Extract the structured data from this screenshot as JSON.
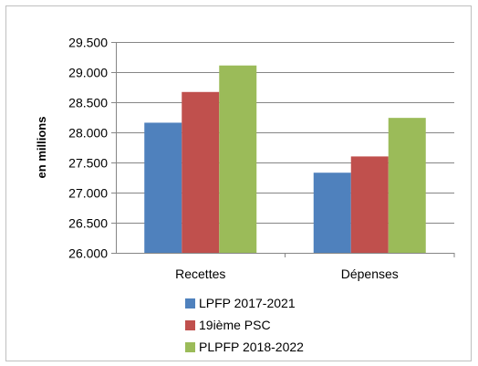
{
  "chart_data": {
    "type": "bar",
    "categories": [
      "Recettes",
      "Dépenses"
    ],
    "series": [
      {
        "name": "LPFP 2017-2021",
        "values": [
          28160,
          27330
        ],
        "color": "#4f81bd"
      },
      {
        "name": "19ième PSC",
        "values": [
          28670,
          27600
        ],
        "color": "#c0504d"
      },
      {
        "name": "PLPFP 2018-2022",
        "values": [
          29110,
          28240
        ],
        "color": "#9bbb59"
      }
    ],
    "ylabel": "en millions",
    "ylim": [
      26000,
      29500
    ],
    "yticks": [
      26000,
      26500,
      27000,
      27500,
      28000,
      28500,
      29000,
      29500
    ],
    "ytick_labels": [
      "26.000",
      "26.500",
      "27.000",
      "27.500",
      "28.000",
      "28.500",
      "29.000",
      "29.500"
    ],
    "grid": true,
    "legend_position": "bottom"
  }
}
